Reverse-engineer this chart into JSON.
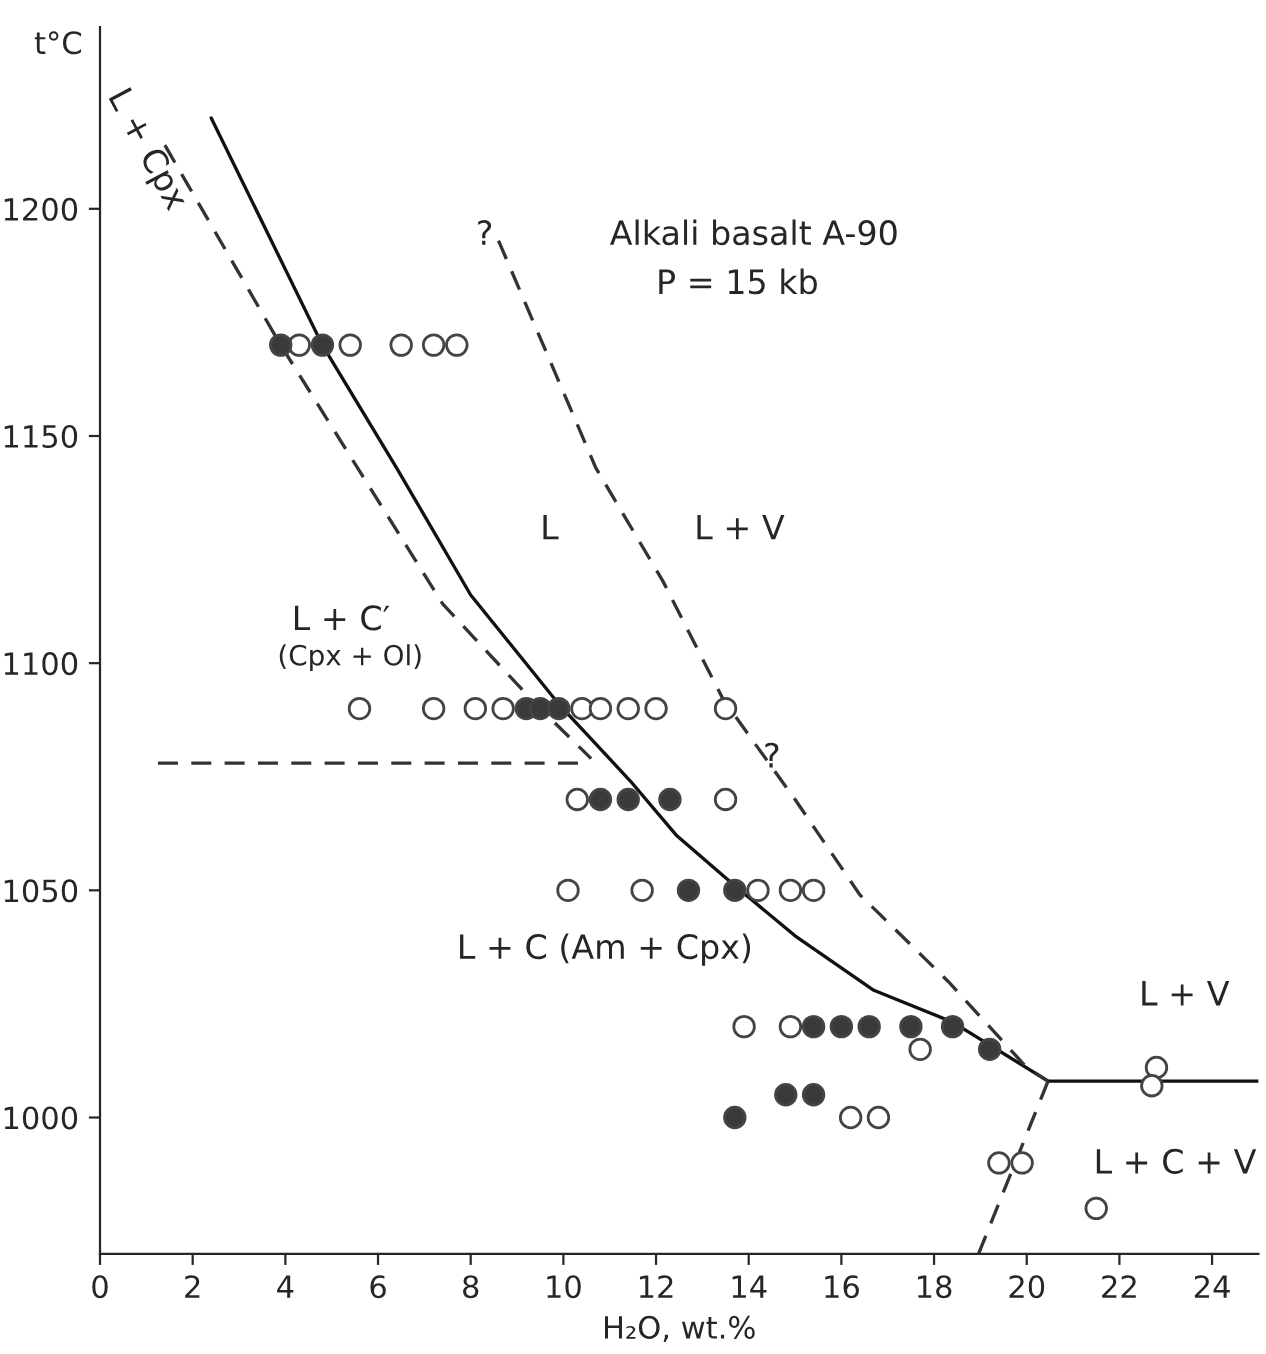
{
  "chart_data": {
    "type": "scatter",
    "xlabel": "H₂O, wt.%",
    "ylabel": "t°C",
    "xlim": [
      0,
      25
    ],
    "ylim": [
      970,
      1240
    ],
    "xticks": [
      0,
      2,
      4,
      6,
      8,
      10,
      12,
      14,
      16,
      18,
      20,
      22,
      24
    ],
    "yticks": [
      1000,
      1050,
      1100,
      1150,
      1200
    ],
    "grid": false,
    "legend": false,
    "series": [
      {
        "type": "line",
        "line_style": "solid",
        "color": "#111111",
        "x": [
          2.4,
          4.8,
          6.4,
          8.0,
          9.9,
          11.45,
          12.45,
          13.7,
          15.0,
          16.7,
          18.4,
          20.46,
          25
        ],
        "values": [
          1220,
          1170,
          1143,
          1115,
          1091,
          1074,
          1062,
          1051,
          1040,
          1028,
          1021,
          1008,
          1008
        ]
      },
      {
        "type": "line",
        "line_style": "dashed",
        "color": "#333333",
        "x": [
          1.4,
          3.9,
          7.4,
          9.4,
          10.6
        ],
        "values": [
          1214,
          1170,
          1113,
          1091,
          1079
        ]
      },
      {
        "type": "line",
        "line_style": "dashed",
        "color": "#333333",
        "x": [
          8.6,
          10.7,
          12.15,
          13.45,
          15.0,
          16.4,
          18.3,
          20.0,
          20.46
        ],
        "values": [
          1193,
          1143,
          1118,
          1092,
          1070,
          1049,
          1030,
          1011,
          1008
        ]
      },
      {
        "type": "line",
        "line_style": "dashed",
        "color": "#333333",
        "x": [
          1.25,
          10.5
        ],
        "values": [
          1078,
          1078
        ]
      },
      {
        "type": "line",
        "line_style": "dashed",
        "color": "#333333",
        "x": [
          20.46,
          18.96
        ],
        "values": [
          1008,
          970
        ]
      },
      {
        "marker": "circle",
        "color": "#ffffff",
        "x": [
          4.3,
          5.4,
          6.5,
          7.2,
          7.7,
          5.6,
          7.2,
          8.1,
          8.7,
          10.4,
          10.8,
          11.4,
          12.0,
          13.5,
          10.3,
          13.5,
          10.1,
          11.7,
          14.2,
          14.9,
          15.4,
          13.9,
          14.9,
          17.7,
          16.2,
          16.8,
          19.4,
          19.9,
          21.5,
          22.8,
          22.7
        ],
        "values": [
          1170,
          1170,
          1170,
          1170,
          1170,
          1090,
          1090,
          1090,
          1090,
          1090,
          1090,
          1090,
          1090,
          1090,
          1070,
          1070,
          1050,
          1050,
          1050,
          1050,
          1050,
          1020,
          1020,
          1015,
          1000,
          1000,
          990,
          990,
          980,
          1011,
          1007
        ]
      },
      {
        "marker": "circle",
        "color": "#3a3a3a",
        "x": [
          3.9,
          4.8,
          9.2,
          9.5,
          9.9,
          10.8,
          11.4,
          12.3,
          12.7,
          13.7,
          15.4,
          16.0,
          16.6,
          17.5,
          18.4,
          19.2,
          14.8,
          15.4,
          13.7
        ],
        "values": [
          1170,
          1170,
          1090,
          1090,
          1090,
          1070,
          1070,
          1070,
          1050,
          1050,
          1020,
          1020,
          1020,
          1020,
          1020,
          1015,
          1005,
          1005,
          1000
        ]
      }
    ],
    "annotations": [
      "Alkali basalt A-90",
      "P = 15 kb",
      "L + Cpx",
      "L",
      "L + V",
      "L + C′",
      "(Cpx + Ol)",
      "L + C (Am + Cpx)",
      "L + V",
      "L + C + V",
      "?",
      "?"
    ]
  }
}
